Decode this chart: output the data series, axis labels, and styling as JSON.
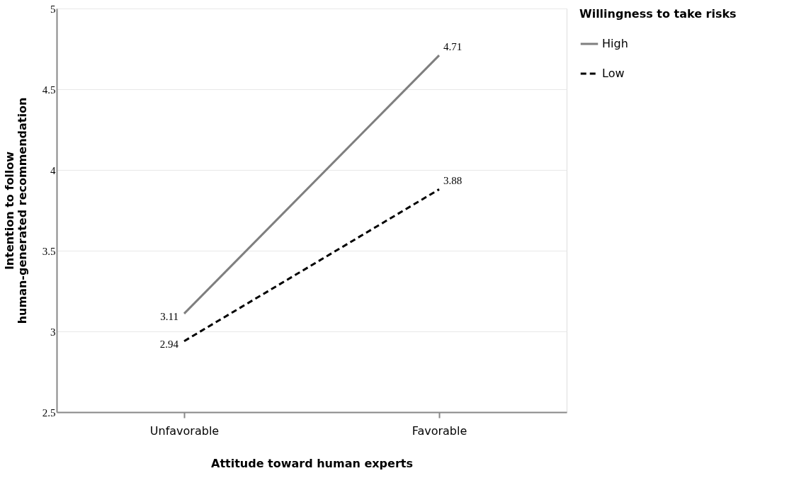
{
  "chart_data": {
    "type": "line",
    "xlabel": "Attitude toward human experts",
    "ylabel": "Intention to follow human-generated recommendation",
    "legend_title": "Willingness to take risks",
    "categories": [
      "Unfavorable",
      "Favorable"
    ],
    "series": [
      {
        "name": "High",
        "color": "#7f7f7f",
        "line_style": "solid",
        "values": [
          3.11,
          4.71
        ]
      },
      {
        "name": "Low",
        "color": "#000000",
        "line_style": "dashed",
        "values": [
          2.94,
          3.88
        ]
      }
    ],
    "ylim": [
      2.5,
      5
    ],
    "yticks": [
      2.5,
      3,
      3.5,
      4,
      4.5,
      5
    ],
    "grid": "y",
    "legend": "top right",
    "data_labels": true,
    "marker": "none"
  }
}
